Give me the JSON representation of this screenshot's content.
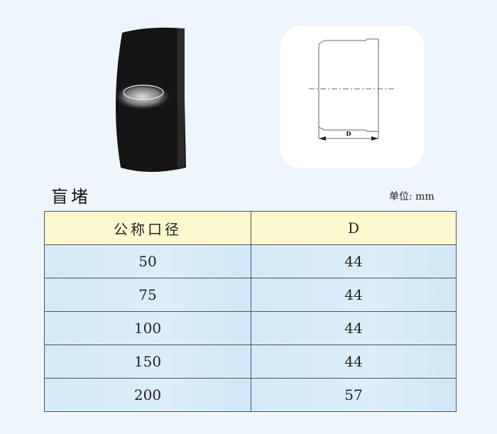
{
  "product": {
    "title": "盲堵",
    "unit_label": "单位: mm"
  },
  "drawing": {
    "dimension_label": "D"
  },
  "table": {
    "headers": [
      "公称口径",
      "D"
    ],
    "rows": [
      [
        "50",
        "44"
      ],
      [
        "75",
        "44"
      ],
      [
        "100",
        "44"
      ],
      [
        "150",
        "44"
      ],
      [
        "200",
        "57"
      ]
    ]
  }
}
